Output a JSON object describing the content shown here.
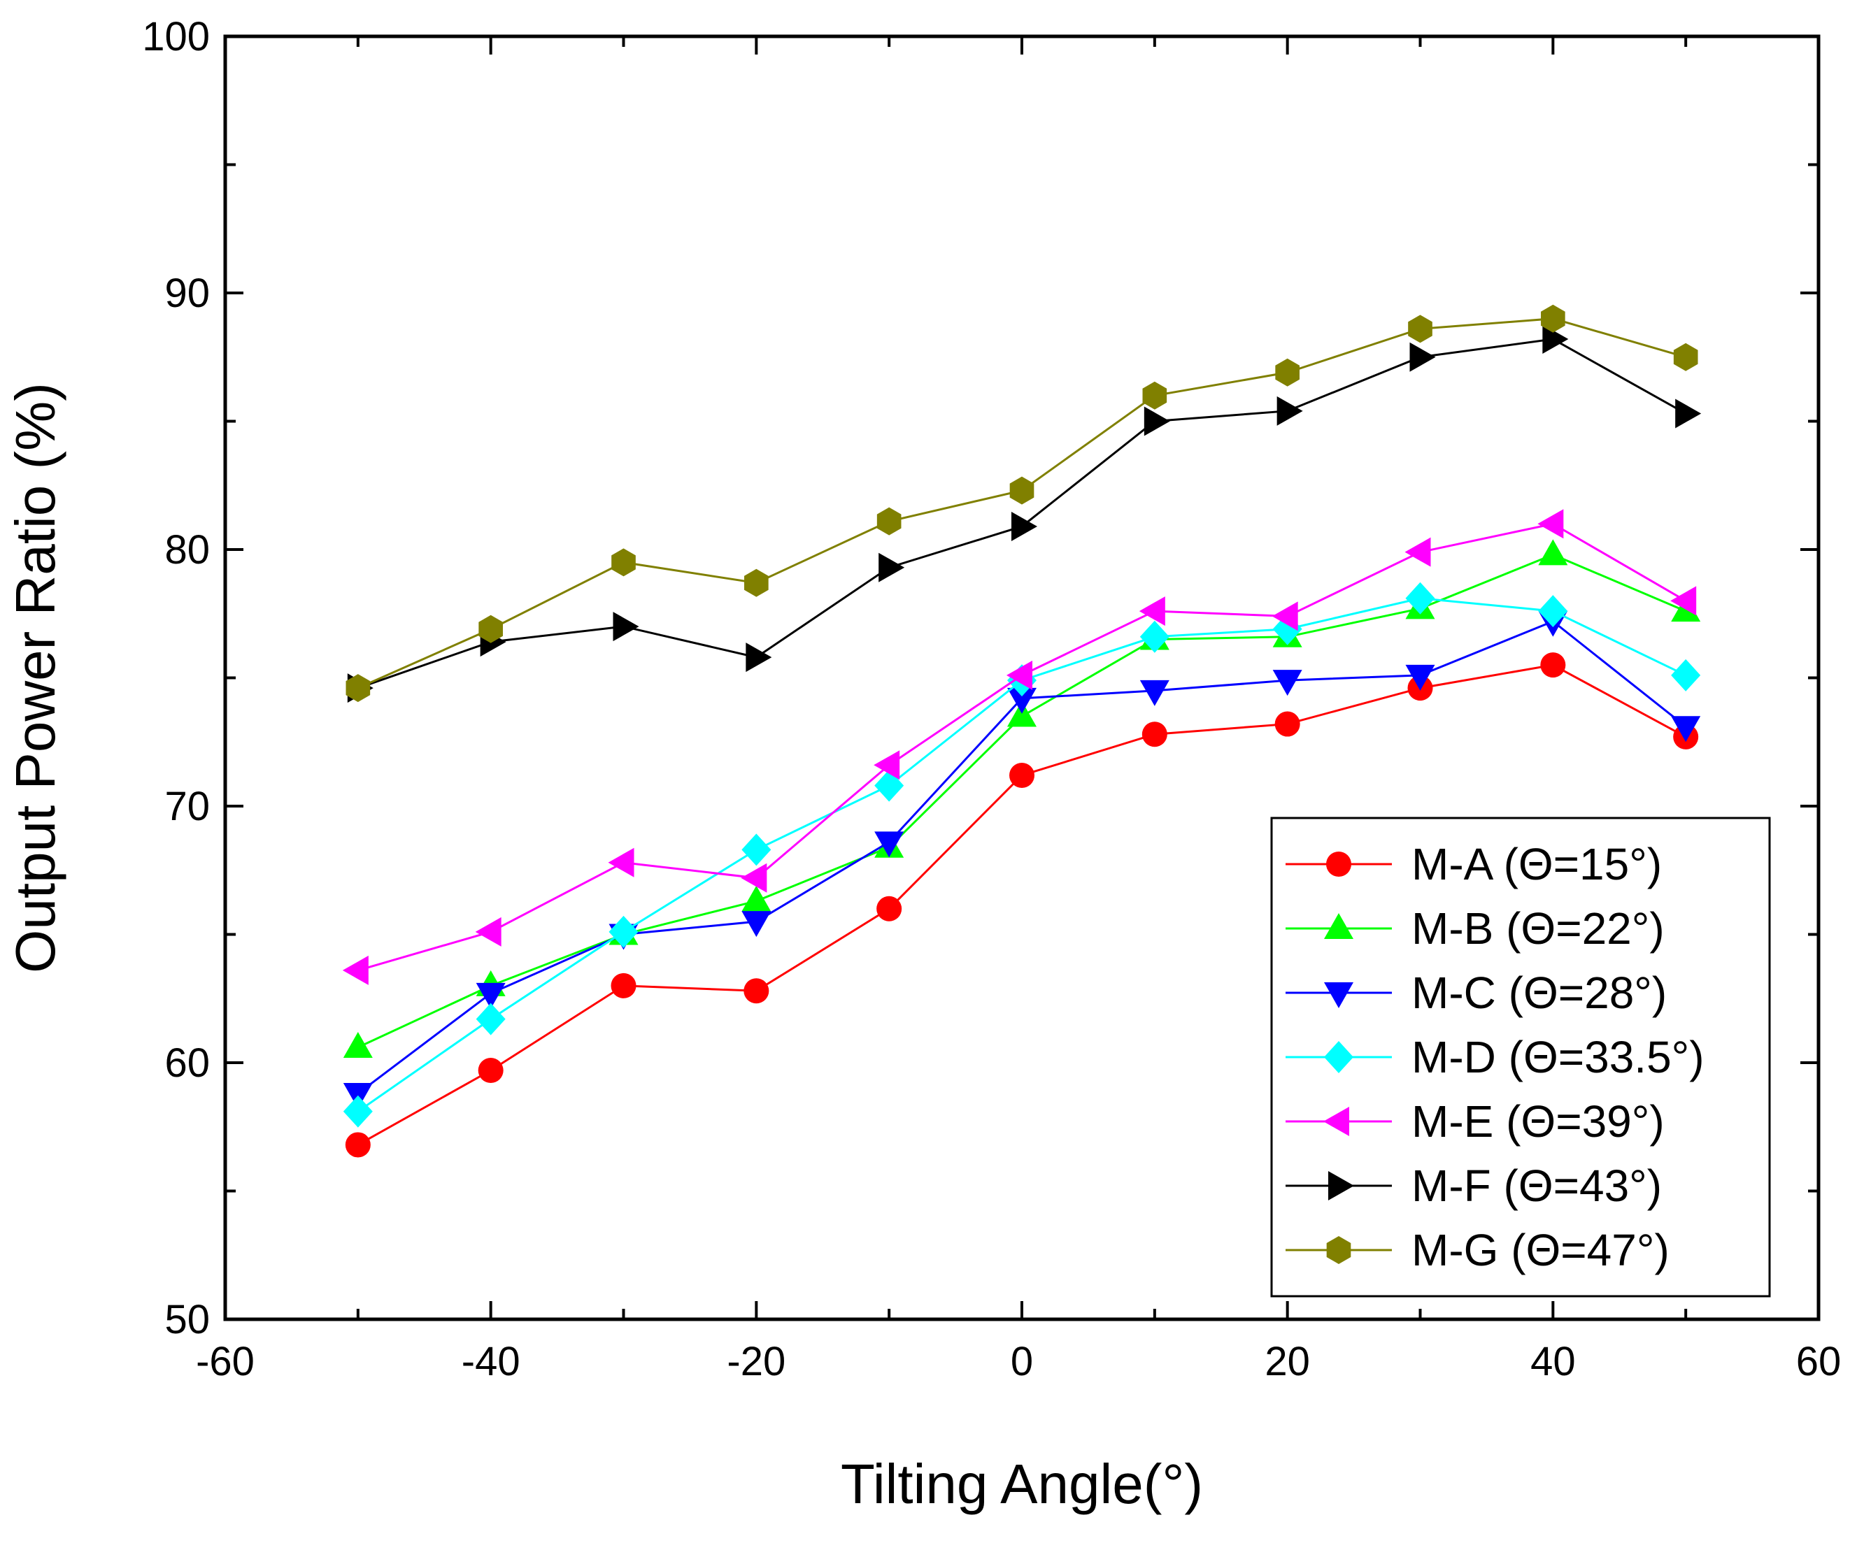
{
  "chart_data": {
    "type": "line",
    "title": "",
    "xlabel": "Tilting Angle(°)",
    "ylabel": "Output Power Ratio (%)",
    "xlim": [
      -60,
      60
    ],
    "ylim": [
      50,
      100
    ],
    "xticks": [
      -60,
      -40,
      -20,
      0,
      20,
      40,
      60
    ],
    "yticks": [
      50,
      60,
      70,
      80,
      90,
      100
    ],
    "x": [
      -50,
      -40,
      -30,
      -20,
      -10,
      0,
      10,
      20,
      30,
      40,
      50
    ],
    "legend_position": "bottom-right",
    "series": [
      {
        "name": "M-A (Θ=15°)",
        "color": "#ff0000",
        "marker": "circle",
        "values": [
          56.8,
          59.7,
          63.0,
          62.8,
          66.0,
          71.2,
          72.8,
          73.2,
          74.6,
          75.5,
          72.7
        ]
      },
      {
        "name": "M-B (Θ=22°)",
        "color": "#00ff00",
        "marker": "triangle-up",
        "values": [
          60.6,
          63.0,
          65.0,
          66.3,
          68.4,
          73.5,
          76.5,
          76.6,
          77.7,
          79.8,
          77.6
        ]
      },
      {
        "name": "M-C (Θ=28°)",
        "color": "#0000ff",
        "marker": "triangle-down",
        "values": [
          58.8,
          62.7,
          65.0,
          65.5,
          68.6,
          74.2,
          74.5,
          74.9,
          75.1,
          77.2,
          73.1
        ]
      },
      {
        "name": "M-D (Θ=33.5°)",
        "color": "#00ffff",
        "marker": "diamond",
        "values": [
          58.1,
          61.7,
          65.1,
          68.3,
          70.8,
          74.9,
          76.6,
          76.9,
          78.1,
          77.6,
          75.1
        ]
      },
      {
        "name": "M-E (Θ=39°)",
        "color": "#ff00ff",
        "marker": "triangle-left",
        "values": [
          63.6,
          65.1,
          67.8,
          67.2,
          71.6,
          75.1,
          77.6,
          77.4,
          79.9,
          81.0,
          78.0
        ]
      },
      {
        "name": "M-F (Θ=43°)",
        "color": "#000000",
        "marker": "triangle-right",
        "values": [
          74.6,
          76.4,
          77.0,
          75.8,
          79.3,
          80.9,
          85.0,
          85.4,
          87.5,
          88.2,
          85.3
        ]
      },
      {
        "name": "M-G (Θ=47°)",
        "color": "#808000",
        "marker": "hexagon",
        "values": [
          74.6,
          76.9,
          79.5,
          78.7,
          81.1,
          82.3,
          86.0,
          86.9,
          88.6,
          89.0,
          87.5
        ]
      }
    ]
  }
}
